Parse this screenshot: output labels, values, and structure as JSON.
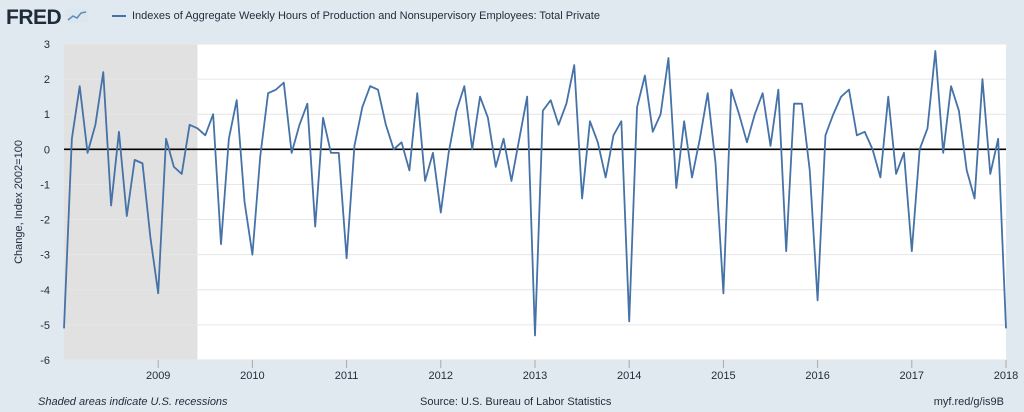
{
  "header": {
    "logo_text": "FRED",
    "legend_label": "Indexes of Aggregate Weekly Hours of Production and Nonsupervisory Employees: Total Private"
  },
  "footer": {
    "left": "Shaded areas indicate U.S. recessions",
    "center": "Source: U.S. Bureau of Labor Statistics",
    "right": "myf.red/g/is9B"
  },
  "colors": {
    "series": "#4572a7",
    "recession": "#e1e1e1",
    "background": "#e1e9f0",
    "plot": "#ffffff"
  },
  "chart_data": {
    "type": "line",
    "title": "",
    "xlabel": "",
    "ylabel": "Change, Index 2002=100",
    "ylim": [
      -6,
      3
    ],
    "xlim": [
      "2008-01",
      "2018-01"
    ],
    "yticks": [
      3,
      2,
      1,
      0,
      -1,
      -2,
      -3,
      -4,
      -5,
      -6
    ],
    "xticks": [
      "2009",
      "2010",
      "2011",
      "2012",
      "2013",
      "2014",
      "2015",
      "2016",
      "2017",
      "2018"
    ],
    "grid": true,
    "legend_position": "top",
    "recession": {
      "start": "2008-01",
      "end": "2009-06"
    },
    "series": [
      {
        "name": "Indexes of Aggregate Weekly Hours of Production and Nonsupervisory Employees: Total Private",
        "start": "2008-01",
        "values": [
          -5.1,
          0.3,
          1.8,
          -0.1,
          0.7,
          2.2,
          -1.6,
          0.5,
          -1.9,
          -0.3,
          -0.4,
          -2.5,
          -4.1,
          0.3,
          -0.5,
          -0.7,
          0.7,
          0.6,
          0.4,
          1.0,
          -2.7,
          0.3,
          1.4,
          -1.5,
          -3.0,
          -0.2,
          1.6,
          1.7,
          1.9,
          -0.1,
          0.7,
          1.3,
          -2.2,
          0.9,
          -0.1,
          -0.1,
          -3.1,
          0.1,
          1.2,
          1.8,
          1.7,
          0.7,
          0.0,
          0.2,
          -0.6,
          1.6,
          -0.9,
          -0.1,
          -1.8,
          -0.1,
          1.1,
          1.8,
          0.0,
          1.5,
          0.9,
          -0.5,
          0.3,
          -0.9,
          0.3,
          1.5,
          -5.3,
          1.1,
          1.4,
          0.7,
          1.3,
          2.4,
          -1.4,
          0.8,
          0.2,
          -0.8,
          0.4,
          0.8,
          -4.9,
          1.2,
          2.1,
          0.5,
          1.0,
          2.6,
          -1.1,
          0.8,
          -0.8,
          0.3,
          1.6,
          -0.4,
          -4.1,
          1.7,
          1.0,
          0.2,
          1.0,
          1.6,
          0.1,
          1.7,
          -2.9,
          1.3,
          1.3,
          -0.6,
          -4.3,
          0.4,
          1.0,
          1.5,
          1.7,
          0.4,
          0.5,
          0.0,
          -0.8,
          1.5,
          -0.7,
          -0.1,
          -2.9,
          0.0,
          0.6,
          2.8,
          -0.1,
          1.8,
          1.1,
          -0.6,
          -1.4,
          2.0,
          -0.7,
          0.3,
          -5.1
        ]
      }
    ]
  }
}
